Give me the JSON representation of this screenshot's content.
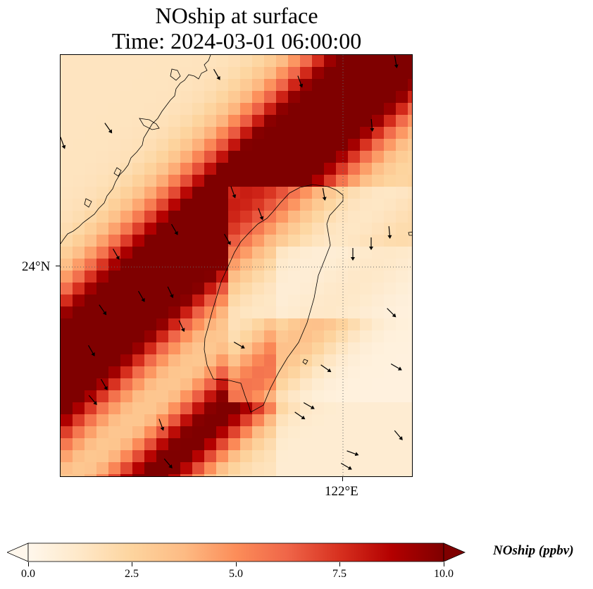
{
  "title_line1": "NOship at surface",
  "title_line2": "Time: 2024-03-01 06:00:00",
  "lat_label": "24°N",
  "lon_label": "122°E",
  "colorbar": {
    "label": "NOship (ppbv)",
    "min": 0,
    "max": 10,
    "ticks": [
      "0.0",
      "2.5",
      "5.0",
      "7.5",
      "10.0"
    ],
    "colormap": "OrRd",
    "colors": [
      "#fff7ec",
      "#fee8c8",
      "#fdd49e",
      "#fdbb84",
      "#fc8d59",
      "#ef6548",
      "#d7301f",
      "#b30000",
      "#7f0000"
    ],
    "extend": "both"
  },
  "map": {
    "region": "Taiwan Strait",
    "projection": "PlateCarree",
    "gridlines": "dotted",
    "wind_vectors": true
  }
}
